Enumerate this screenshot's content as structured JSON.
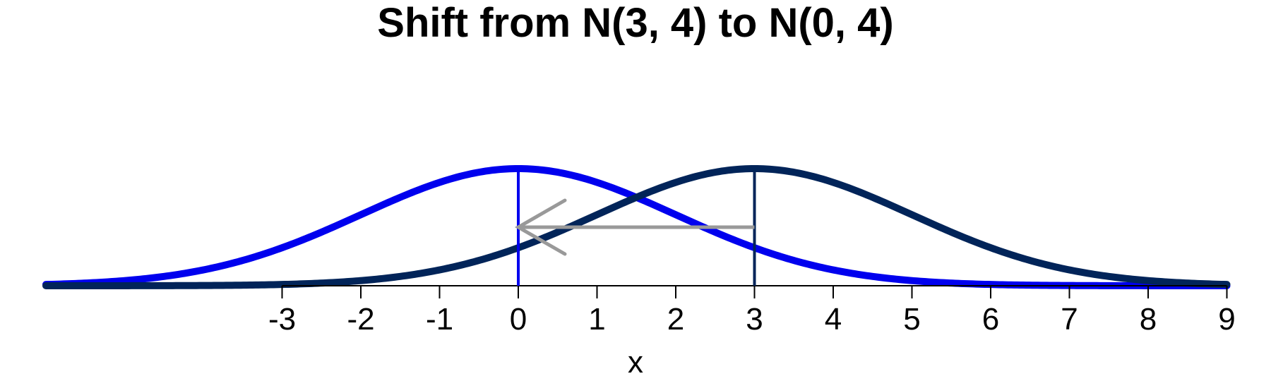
{
  "chart_data": {
    "type": "line",
    "title": "Shift from N(3, 4) to N(0, 4)",
    "xlabel": "x",
    "ylabel": "",
    "x_ticks": [
      -3,
      -2,
      -1,
      0,
      1,
      2,
      3,
      4,
      5,
      6,
      7,
      8,
      9
    ],
    "xlim": [
      -6,
      9
    ],
    "grid": false,
    "legend": "none",
    "series": [
      {
        "mean": 0,
        "variance": 4,
        "color": "#0000ee"
      },
      {
        "mean": 3,
        "variance": 4,
        "color": "#012459"
      }
    ],
    "mean_markers": [
      {
        "x": 0,
        "color": "#0000ee"
      },
      {
        "x": 3,
        "color": "#012459"
      }
    ],
    "arrow": {
      "from_x": 3,
      "to_x": 0,
      "y_fraction_of_peak": 0.5,
      "color": "#999999"
    }
  }
}
